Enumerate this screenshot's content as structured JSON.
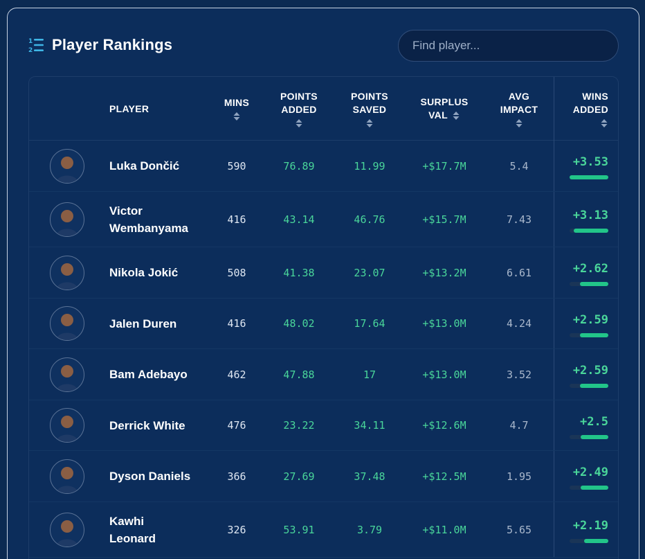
{
  "header": {
    "title": "Player Rankings",
    "search_placeholder": "Find player..."
  },
  "columns": {
    "player": "PLAYER",
    "mins": "MINS",
    "points_added": [
      "POINTS",
      "ADDED"
    ],
    "points_saved": [
      "POINTS",
      "SAVED"
    ],
    "surplus_val": [
      "SURPLUS",
      "VAL"
    ],
    "avg_impact": [
      "AVG",
      "IMPACT"
    ],
    "wins_added": [
      "WINS",
      "ADDED"
    ]
  },
  "rows": [
    {
      "name": [
        "Luka Dončić"
      ],
      "mins": "590",
      "points_added": "76.89",
      "points_saved": "11.99",
      "surplus": "+$17.7M",
      "impact": "5.4",
      "wins": "+3.53",
      "wins_fraction": 1.0
    },
    {
      "name": [
        "Victor",
        "Wembanyama"
      ],
      "mins": "416",
      "points_added": "43.14",
      "points_saved": "46.76",
      "surplus": "+$15.7M",
      "impact": "7.43",
      "wins": "+3.13",
      "wins_fraction": 0.89
    },
    {
      "name": [
        "Nikola Jokić"
      ],
      "mins": "508",
      "points_added": "41.38",
      "points_saved": "23.07",
      "surplus": "+$13.2M",
      "impact": "6.61",
      "wins": "+2.62",
      "wins_fraction": 0.74
    },
    {
      "name": [
        "Jalen Duren"
      ],
      "mins": "416",
      "points_added": "48.02",
      "points_saved": "17.64",
      "surplus": "+$13.0M",
      "impact": "4.24",
      "wins": "+2.59",
      "wins_fraction": 0.73
    },
    {
      "name": [
        "Bam Adebayo"
      ],
      "mins": "462",
      "points_added": "47.88",
      "points_saved": "17",
      "surplus": "+$13.0M",
      "impact": "3.52",
      "wins": "+2.59",
      "wins_fraction": 0.73
    },
    {
      "name": [
        "Derrick White"
      ],
      "mins": "476",
      "points_added": "23.22",
      "points_saved": "34.11",
      "surplus": "+$12.6M",
      "impact": "4.7",
      "wins": "+2.5",
      "wins_fraction": 0.71
    },
    {
      "name": [
        "Dyson Daniels"
      ],
      "mins": "366",
      "points_added": "27.69",
      "points_saved": "37.48",
      "surplus": "+$12.5M",
      "impact": "1.95",
      "wins": "+2.49",
      "wins_fraction": 0.71
    },
    {
      "name": [
        "Kawhi",
        "Leonard"
      ],
      "mins": "326",
      "points_added": "53.91",
      "points_saved": "3.79",
      "surplus": "+$11.0M",
      "impact": "5.65",
      "wins": "+2.19",
      "wins_fraction": 0.62
    }
  ],
  "icons": {
    "title": "ranking-list-icon",
    "sort": "sort-arrows-icon",
    "avatar": "player-headshot"
  },
  "colors": {
    "background": "#0c2d5b",
    "accent_green": "#4ad69a",
    "bar_green": "#22c589",
    "title_icon": "#3fb6e6"
  }
}
